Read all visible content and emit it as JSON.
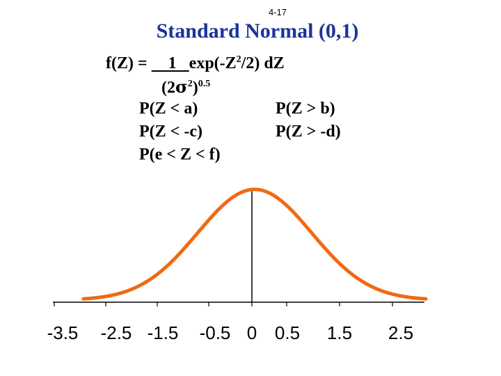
{
  "slide_number": "4-17",
  "title": "Standard Normal (0,1)",
  "formula": {
    "lhs": "f(Z) = ",
    "numerator": "    1   ",
    "exp_part_pre": "exp(-Z",
    "exp_sup": "2",
    "exp_part_post": "/2) dZ",
    "denominator_pre": "(2",
    "sigma_glyph": "σ",
    "denominator_sup1": "2",
    "denominator_mid": ")",
    "denominator_sup2": "0.5"
  },
  "probabilities": {
    "left": [
      "P(Z < a)",
      "P(Z < -c)",
      "P(e < Z < f)"
    ],
    "right": [
      "P(Z > b)",
      "P(Z > -d)"
    ]
  },
  "chart_data": {
    "type": "line",
    "curve": "standard normal density",
    "xlim": [
      -3.5,
      2.8
    ],
    "x_tick_labels": [
      "-3.5",
      "-2.5",
      "-1.5",
      "-0.5",
      "0",
      "0.5",
      "1.5",
      "2.5"
    ],
    "mean": 0,
    "std": 1,
    "series_color": "#f06a14"
  }
}
